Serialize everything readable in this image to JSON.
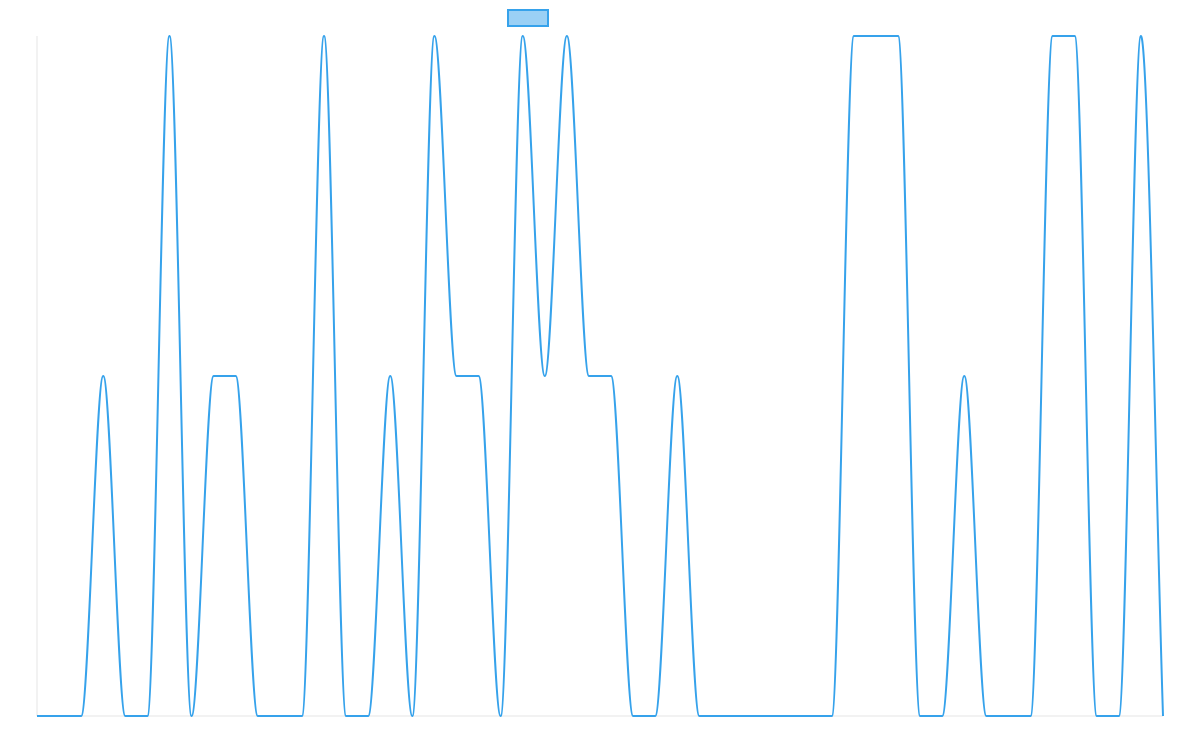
{
  "chart_data": {
    "type": "line",
    "title": "",
    "xlabel": "",
    "ylabel": "",
    "ylim": [
      0,
      2
    ],
    "grid": false,
    "x": [
      0,
      1,
      2,
      3,
      4,
      5,
      6,
      7,
      8,
      9,
      10,
      11,
      12,
      13,
      14,
      15,
      16,
      17,
      18,
      19,
      20,
      21,
      22,
      23,
      24,
      25,
      26,
      27,
      28,
      29,
      30,
      31,
      32,
      33,
      34,
      35,
      36,
      37,
      38,
      39,
      40,
      41,
      42,
      43,
      44,
      45,
      46,
      47,
      48,
      49,
      50,
      51
    ],
    "series": [
      {
        "name": "",
        "color": "#36a2eb",
        "fill": "#9ad0f5",
        "values": [
          0,
          0,
          0,
          1,
          0,
          0,
          2,
          0,
          1,
          1,
          0,
          0,
          0,
          2,
          0,
          0,
          1,
          0,
          2,
          1,
          1,
          0,
          2,
          1,
          2,
          1,
          1,
          0,
          0,
          1,
          0,
          0,
          0,
          0,
          0,
          0,
          0,
          2,
          2,
          2,
          0,
          0,
          1,
          0,
          0,
          0,
          2,
          2,
          0,
          0,
          2,
          0
        ]
      }
    ],
    "legend": {
      "position": "top",
      "entries": [
        ""
      ]
    }
  }
}
